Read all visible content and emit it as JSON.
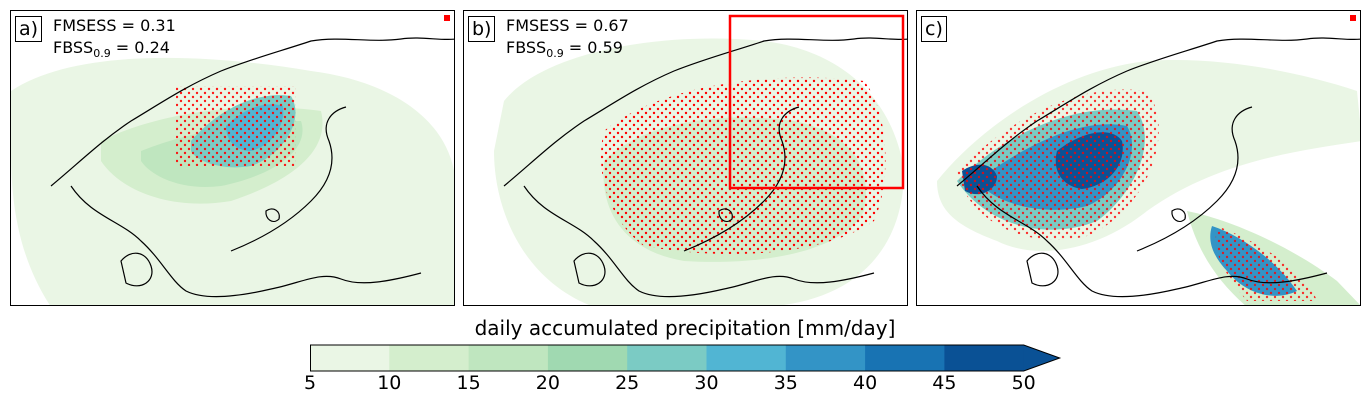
{
  "panels": [
    {
      "label": "a)",
      "stat1": "FMSESS = 0.31",
      "stat2_main": "FBSS",
      "stat2_sub": "0.9",
      "stat2_val": " = 0.24"
    },
    {
      "label": "b)",
      "stat1": "FMSESS = 0.67",
      "stat2_main": "FBSS",
      "stat2_sub": "0.9",
      "stat2_val": " = 0.59"
    },
    {
      "label": "c)"
    }
  ],
  "colorbar": {
    "title": "daily accumulated precipitation [mm/day]",
    "ticks": [
      "5",
      "10",
      "15",
      "20",
      "25",
      "30",
      "35",
      "40",
      "45",
      "50"
    ],
    "colors": [
      "#eaf6e5",
      "#d4eecd",
      "#bfe6bf",
      "#a0d9b1",
      "#7bcbc4",
      "#51b5d3",
      "#3394c6",
      "#1873b3",
      "#0a5195"
    ]
  },
  "colors": {
    "coast": "#000000",
    "stipple": "#ff0000",
    "highlight_box": "#ff0000"
  }
}
